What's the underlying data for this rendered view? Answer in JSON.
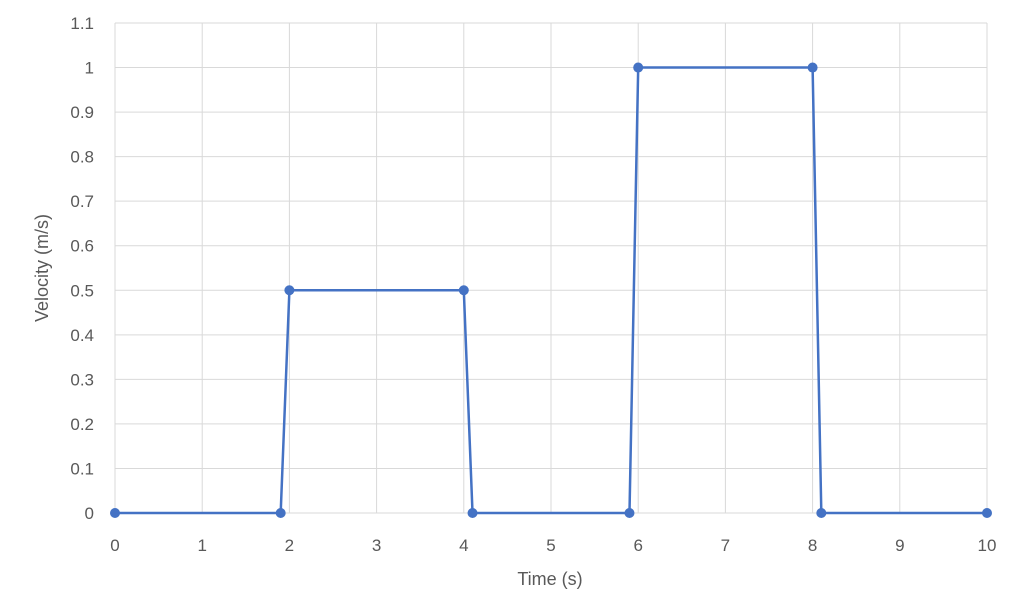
{
  "chart_data": {
    "type": "line",
    "title": "",
    "xlabel": "Time (s)",
    "ylabel": "Velocity (m/s)",
    "xlim": [
      0,
      10
    ],
    "ylim": [
      0,
      1.1
    ],
    "x_ticks": [
      "0",
      "1",
      "2",
      "3",
      "4",
      "5",
      "6",
      "7",
      "8",
      "9",
      "10"
    ],
    "y_ticks": [
      "0",
      "0.1",
      "0.2",
      "0.3",
      "0.4",
      "0.5",
      "0.6",
      "0.7",
      "0.8",
      "0.9",
      "1",
      "1.1"
    ],
    "grid": true,
    "legend": "none",
    "series": [
      {
        "color": "#4472C4",
        "marker": "circle",
        "points": [
          {
            "x": 0,
            "y": 0
          },
          {
            "x": 1.9,
            "y": 0
          },
          {
            "x": 2,
            "y": 0.5
          },
          {
            "x": 4,
            "y": 0.5
          },
          {
            "x": 4.1,
            "y": 0
          },
          {
            "x": 5.9,
            "y": 0
          },
          {
            "x": 6,
            "y": 1
          },
          {
            "x": 8,
            "y": 1
          },
          {
            "x": 8.1,
            "y": 0
          },
          {
            "x": 10,
            "y": 0
          }
        ]
      }
    ],
    "colors": {
      "grid": "#D9D9D9",
      "text": "#595959",
      "background": "#FFFFFF"
    }
  }
}
